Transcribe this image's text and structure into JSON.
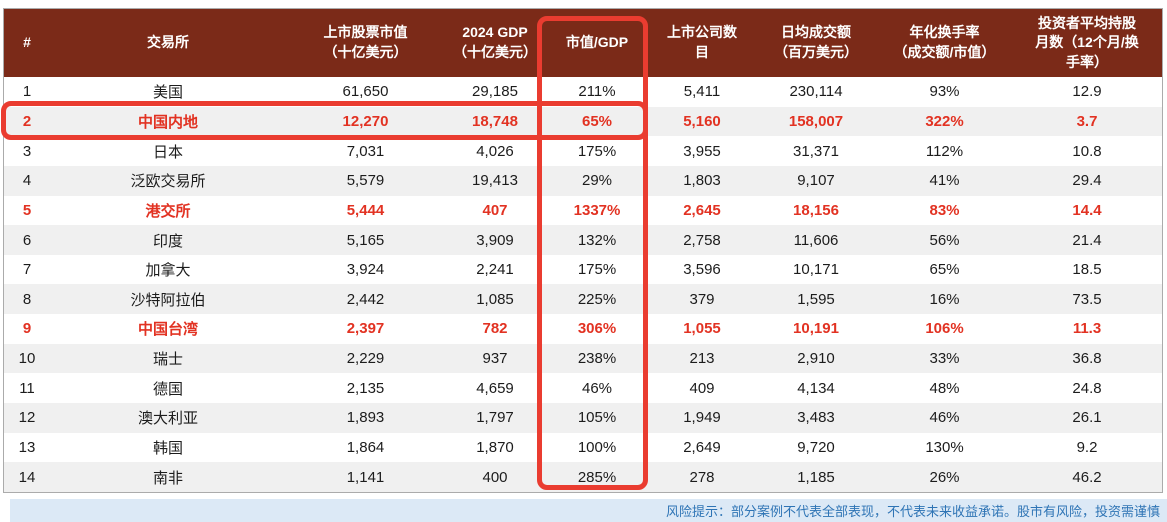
{
  "header": {
    "columns": [
      "#",
      "交易所",
      "上市股票市值\n（十亿美元）",
      "2024 GDP\n（十亿美元）",
      "市值/GDP",
      "上市公司数\n目",
      "日均成交额\n（百万美元）",
      "年化换手率\n（成交额/市值）",
      "投资者平均持股\n月数（12个月/换\n手率）"
    ]
  },
  "table": {
    "rows": [
      {
        "cells": [
          "1",
          "美国",
          "61,650",
          "29,185",
          "211%",
          "5,411",
          "230,114",
          "93%",
          "12.9"
        ],
        "highlight": false
      },
      {
        "cells": [
          "2",
          "中国内地",
          "12,270",
          "18,748",
          "65%",
          "5,160",
          "158,007",
          "322%",
          "3.7"
        ],
        "highlight": true
      },
      {
        "cells": [
          "3",
          "日本",
          "7,031",
          "4,026",
          "175%",
          "3,955",
          "31,371",
          "112%",
          "10.8"
        ],
        "highlight": false
      },
      {
        "cells": [
          "4",
          "泛欧交易所",
          "5,579",
          "19,413",
          "29%",
          "1,803",
          "9,107",
          "41%",
          "29.4"
        ],
        "highlight": false
      },
      {
        "cells": [
          "5",
          "港交所",
          "5,444",
          "407",
          "1337%",
          "2,645",
          "18,156",
          "83%",
          "14.4"
        ],
        "highlight": true
      },
      {
        "cells": [
          "6",
          "印度",
          "5,165",
          "3,909",
          "132%",
          "2,758",
          "11,606",
          "56%",
          "21.4"
        ],
        "highlight": false
      },
      {
        "cells": [
          "7",
          "加拿大",
          "3,924",
          "2,241",
          "175%",
          "3,596",
          "10,171",
          "65%",
          "18.5"
        ],
        "highlight": false
      },
      {
        "cells": [
          "8",
          "沙特阿拉伯",
          "2,442",
          "1,085",
          "225%",
          "379",
          "1,595",
          "16%",
          "73.5"
        ],
        "highlight": false
      },
      {
        "cells": [
          "9",
          "中国台湾",
          "2,397",
          "782",
          "306%",
          "1,055",
          "10,191",
          "106%",
          "11.3"
        ],
        "highlight": true
      },
      {
        "cells": [
          "10",
          "瑞士",
          "2,229",
          "937",
          "238%",
          "213",
          "2,910",
          "33%",
          "36.8"
        ],
        "highlight": false
      },
      {
        "cells": [
          "11",
          "德国",
          "2,135",
          "4,659",
          "46%",
          "409",
          "4,134",
          "48%",
          "24.8"
        ],
        "highlight": false
      },
      {
        "cells": [
          "12",
          "澳大利亚",
          "1,893",
          "1,797",
          "105%",
          "1,949",
          "3,483",
          "46%",
          "26.1"
        ],
        "highlight": false
      },
      {
        "cells": [
          "13",
          "韩国",
          "1,864",
          "1,870",
          "100%",
          "2,649",
          "9,720",
          "130%",
          "9.2"
        ],
        "highlight": false
      },
      {
        "cells": [
          "14",
          "南非",
          "1,141",
          "400",
          "285%",
          "278",
          "1,185",
          "26%",
          "46.2"
        ],
        "highlight": false
      }
    ]
  },
  "annotations": {
    "highlighted_rows": [
      "中国内地",
      "港交所",
      "中国台湾"
    ],
    "row_box_around": "中国内地",
    "column_box_around": "市值/GDP"
  },
  "footer": {
    "disclaimer": "风险提示：部分案例不代表全部表现，不代表未来收益承诺。股市有风险，投资需谨慎"
  },
  "colors": {
    "header_bg": "#7b2a18",
    "accent_red": "#e23222",
    "box_red": "#ea3c30",
    "row_alt": "#f0f0f0",
    "footer_bg": "#dce9f6",
    "footer_text": "#2e74b5"
  },
  "chart_data": {
    "type": "table",
    "title": "",
    "columns": [
      "#",
      "交易所",
      "上市股票市值（十亿美元）",
      "2024 GDP（十亿美元）",
      "市值/GDP",
      "上市公司数目",
      "日均成交额（百万美元）",
      "年化换手率（成交额/市值）",
      "投资者平均持股月数（12个月/换手率）"
    ],
    "rows": [
      [
        1,
        "美国",
        61650,
        29185,
        "211%",
        5411,
        230114,
        "93%",
        12.9
      ],
      [
        2,
        "中国内地",
        12270,
        18748,
        "65%",
        5160,
        158007,
        "322%",
        3.7
      ],
      [
        3,
        "日本",
        7031,
        4026,
        "175%",
        3955,
        31371,
        "112%",
        10.8
      ],
      [
        4,
        "泛欧交易所",
        5579,
        19413,
        "29%",
        1803,
        9107,
        "41%",
        29.4
      ],
      [
        5,
        "港交所",
        5444,
        407,
        "1337%",
        2645,
        18156,
        "83%",
        14.4
      ],
      [
        6,
        "印度",
        5165,
        3909,
        "132%",
        2758,
        11606,
        "56%",
        21.4
      ],
      [
        7,
        "加拿大",
        3924,
        2241,
        "175%",
        3596,
        10171,
        "65%",
        18.5
      ],
      [
        8,
        "沙特阿拉伯",
        2442,
        1085,
        "225%",
        379,
        1595,
        "16%",
        73.5
      ],
      [
        9,
        "中国台湾",
        2397,
        782,
        "306%",
        1055,
        10191,
        "106%",
        11.3
      ],
      [
        10,
        "瑞士",
        2229,
        937,
        "238%",
        213,
        2910,
        "33%",
        36.8
      ],
      [
        11,
        "德国",
        2135,
        4659,
        "46%",
        409,
        4134,
        "48%",
        24.8
      ],
      [
        12,
        "澳大利亚",
        1893,
        1797,
        "105%",
        1949,
        3483,
        "46%",
        26.1
      ],
      [
        13,
        "韩国",
        1864,
        1870,
        "100%",
        2649,
        9720,
        "130%",
        9.2
      ],
      [
        14,
        "南非",
        1141,
        400,
        "285%",
        278,
        1185,
        "26%",
        46.2
      ]
    ],
    "legend": [],
    "notes": "rows 2, 5, 9 emphasized in red; 市值/GDP column outlined in red box; 中国内地 row outlined in red box"
  }
}
